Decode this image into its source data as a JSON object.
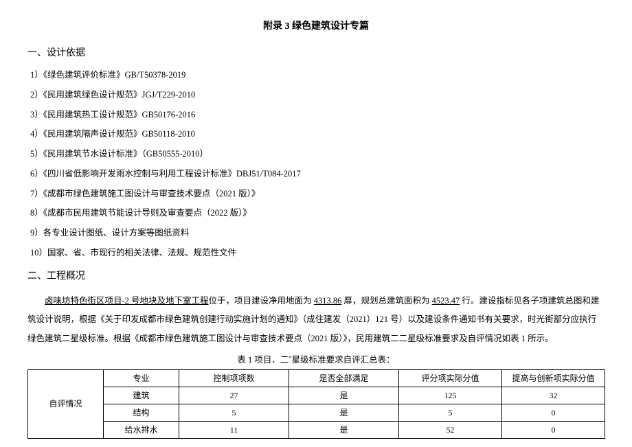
{
  "title": "附录 3 绿色建筑设计专篇",
  "section1_heading": "一、设计依据",
  "deps": [
    "1）《绿色建筑评价标准》GB/T50378-2019",
    "2）《民用建筑绿色设计规范》JGJ/T229-2010",
    "3）《民用建筑热工设计规范》GB50176-2016",
    "4）《民用建筑隔声设计规范》GB50118-2010",
    "5）《民用建筑节水设计标准》（GB50555-2010）",
    "6）《四川省低影响开发雨水控制与利用工程设计标准》DBJ51/T084-2017",
    "7）《成都市绿色建筑施工图设计与审查技术要点（2021 版）》",
    "8）《成都市民用建筑节能设计导则及审查要点（2022 版）》",
    "9）各专业设计图纸、设计方案等图纸资料",
    "10）国家、省、市现行的相关法律、法规、规范性文件"
  ],
  "section2_heading": "二、工程概况",
  "para": {
    "p1a": "卤味坊特色街区项目-2 号地块及地下室工程",
    "p1b": "位于，项目建设净用地面为 ",
    "p1c": "4313.86",
    "p1d": " 㕌，规划总建筑面积为 ",
    "p1e": "4523.47",
    "p1f": " 行。建设指标见各子项建筑总图和建筑设计说明，根据《关于印发成都市绿色建筑创建行动实施计划的通知》（成住建发（2021）121 号）以及建设条件通知书有关要求，时光街部分应执行绿色建筑二星级标准。根据《成都市绿色建筑施工图设计与审查技术要点（2021 版）》，民用建筑二二星级标准要求及自评情况如表 1 所示。"
  },
  "table_caption": "表 1 项目．二ˆ星级标准要求自评汇总表：",
  "table": {
    "headers": [
      "专业",
      "控制项项数",
      "是否全部满足",
      "评分项实际分值",
      "提高与创新项实际分值"
    ],
    "rowgroup_label": "自评情况",
    "rows": [
      [
        "建筑",
        "27",
        "是",
        "125",
        "32"
      ],
      [
        "结构",
        "5",
        "是",
        "5",
        "0"
      ],
      [
        "给水排水",
        "11",
        "是",
        "52",
        "0"
      ]
    ]
  }
}
